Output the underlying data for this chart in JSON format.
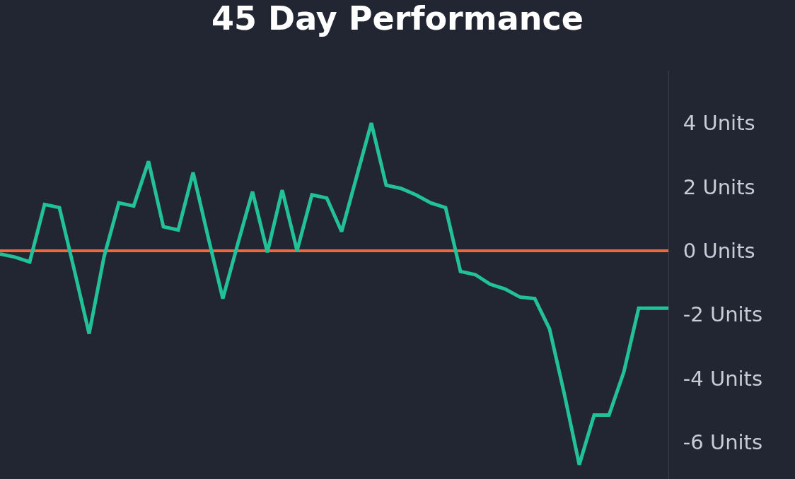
{
  "chart_data": {
    "type": "line",
    "title": "45 Day Performance",
    "categories": [
      null,
      null,
      null,
      null,
      null,
      null,
      null,
      null,
      null,
      null,
      null,
      null,
      null,
      null,
      null,
      null,
      null,
      null,
      null,
      null,
      null,
      null,
      null,
      null,
      null,
      null,
      null,
      null,
      null,
      null,
      null,
      null,
      null,
      null,
      null,
      null,
      null,
      null,
      null,
      null,
      null,
      null,
      null,
      null,
      null,
      null
    ],
    "series": [
      {
        "color": "#22c197",
        "values": [
          -0.1,
          -0.2,
          -0.35,
          1.45,
          1.35,
          -0.6,
          -2.6,
          -0.2,
          1.5,
          1.4,
          2.8,
          0.75,
          0.65,
          2.45,
          0.45,
          -1.5,
          0.2,
          1.85,
          -0.05,
          1.9,
          0,
          1.75,
          1.65,
          0.6,
          2.3,
          4.0,
          2.05,
          1.95,
          1.75,
          1.5,
          1.35,
          -0.65,
          -0.75,
          -1.05,
          -1.2,
          -1.45,
          -1.5,
          -2.45,
          -4.5,
          -6.7,
          -5.15,
          -5.15,
          -3.8,
          -1.8,
          -1.8,
          -1.8
        ]
      }
    ],
    "ylim": [
      -7.15,
      5.64
    ],
    "yticks": [
      {
        "value": 4,
        "label": "4 Units"
      },
      {
        "value": 2,
        "label": "2 Units"
      },
      {
        "value": 0,
        "label": "0 Units"
      },
      {
        "value": -2,
        "label": "-2 Units"
      },
      {
        "value": -4,
        "label": "-4 Units"
      },
      {
        "value": -6,
        "label": "-6 Units"
      }
    ],
    "ref_lines": [
      {
        "axis": "y",
        "value": 0,
        "color": "#f0683f"
      }
    ],
    "grid": false,
    "marker": "none",
    "line_style": "solid"
  }
}
